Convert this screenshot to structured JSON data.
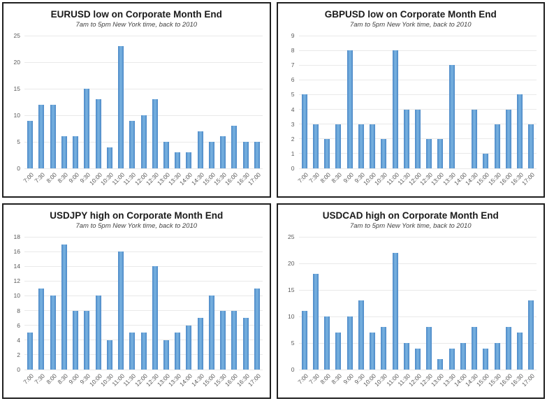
{
  "chart_data": [
    {
      "type": "bar",
      "title": "EURUSD low on Corporate Month End",
      "subtitle": "7am to 5pm New York time, back to 2010",
      "categories": [
        "7:00",
        "7:30",
        "8:00",
        "8:30",
        "9:00",
        "9:30",
        "10:00",
        "10:30",
        "11:00",
        "11:30",
        "12:00",
        "12:30",
        "13:00",
        "13:30",
        "14:00",
        "14:30",
        "15:00",
        "15:30",
        "16:00",
        "16:30",
        "17:00"
      ],
      "values": [
        9,
        12,
        12,
        6,
        6,
        15,
        13,
        4,
        23,
        9,
        10,
        13,
        5,
        3,
        3,
        7,
        5,
        6,
        8,
        5,
        5
      ],
      "xlabel": "",
      "ylabel": "",
      "ylim": [
        0,
        25
      ],
      "ystep": 5,
      "grid": true,
      "legend": "none"
    },
    {
      "type": "bar",
      "title": "GBPUSD low on Corporate Month End",
      "subtitle": "7am to 5pm New York time, back to 2010",
      "categories": [
        "7:00",
        "7:30",
        "8:00",
        "8:30",
        "9:00",
        "9:30",
        "10:00",
        "10:30",
        "11:00",
        "11:30",
        "12:00",
        "12:30",
        "13:00",
        "13:30",
        "14:00",
        "14:30",
        "15:00",
        "15:30",
        "16:00",
        "16:30",
        "17:00"
      ],
      "values": [
        5,
        3,
        2,
        3,
        8,
        3,
        3,
        2,
        8,
        4,
        4,
        2,
        2,
        7,
        0,
        4,
        1,
        3,
        4,
        5,
        3
      ],
      "xlabel": "",
      "ylabel": "",
      "ylim": [
        0,
        9
      ],
      "ystep": 1,
      "grid": true,
      "legend": "none"
    },
    {
      "type": "bar",
      "title": "USDJPY high on Corporate Month End",
      "subtitle": "7am to 5pm New York time, back to 2010",
      "categories": [
        "7:00",
        "7:30",
        "8:00",
        "8:30",
        "9:00",
        "9:30",
        "10:00",
        "10:30",
        "11:00",
        "11:30",
        "12:00",
        "12:30",
        "13:00",
        "13:30",
        "14:00",
        "14:30",
        "15:00",
        "15:30",
        "16:00",
        "16:30",
        "17:00"
      ],
      "values": [
        5,
        11,
        10,
        17,
        8,
        8,
        10,
        4,
        16,
        5,
        5,
        14,
        4,
        5,
        6,
        7,
        10,
        8,
        8,
        7,
        11
      ],
      "xlabel": "",
      "ylabel": "",
      "ylim": [
        0,
        18
      ],
      "ystep": 2,
      "grid": true,
      "legend": "none"
    },
    {
      "type": "bar",
      "title": "USDCAD high on Corporate Month End",
      "subtitle": "7am to 5pm New York time, back to 2010",
      "categories": [
        "7:00",
        "7:30",
        "8:00",
        "8:30",
        "9:00",
        "9:30",
        "10:00",
        "10:30",
        "11:00",
        "11:30",
        "12:00",
        "12:30",
        "13:00",
        "13:30",
        "14:00",
        "14:30",
        "15:00",
        "15:30",
        "16:00",
        "16:30",
        "17:00"
      ],
      "values": [
        11,
        18,
        10,
        7,
        10,
        13,
        7,
        8,
        22,
        5,
        4,
        8,
        2,
        4,
        5,
        8,
        4,
        5,
        8,
        7,
        13
      ],
      "xlabel": "",
      "ylabel": "",
      "ylim": [
        0,
        25
      ],
      "ystep": 5,
      "grid": true,
      "legend": "none"
    }
  ],
  "colors": {
    "bar_center": "#74aede",
    "bar_edge": "#4a87c6",
    "grid": "#e9e9e9",
    "title": "#1a1a1a",
    "subtitle": "#3f3f3f",
    "tick": "#595959",
    "panel_border": "#1f1f1f"
  }
}
